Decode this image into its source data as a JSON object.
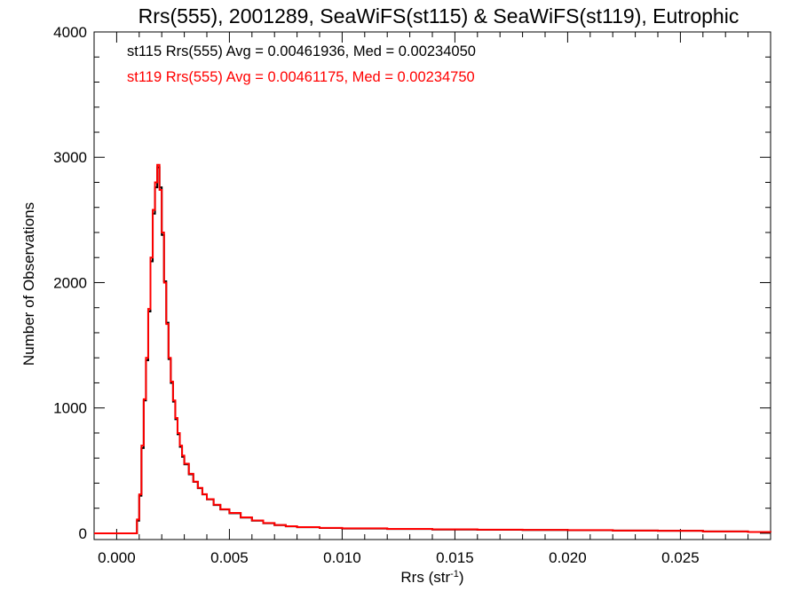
{
  "chart_data": {
    "type": "line",
    "title": "Rrs(555), 2001289, SeaWiFS(st115) & SeaWiFS(st119), Eutrophic",
    "xlabel": "Rrs (str",
    "xlabel_superscript": "-1",
    "xlabel_suffix": ")",
    "ylabel": "Number of Observations",
    "xlim": [
      -0.001,
      0.029
    ],
    "ylim": [
      -50,
      4000
    ],
    "x_ticks": [
      "0.000",
      "0.005",
      "0.010",
      "0.015",
      "0.020",
      "0.025"
    ],
    "y_ticks": [
      "0",
      "1000",
      "2000",
      "3000",
      "4000"
    ],
    "grid": false,
    "annotations": [
      {
        "text": "st115 Rrs(555) Avg = 0.00461936, Med = 0.00234050",
        "color": "#000000"
      },
      {
        "text": "st119 Rrs(555) Avg = 0.00461175, Med = 0.00234750",
        "color": "#ff0000"
      }
    ],
    "series": [
      {
        "name": "st115",
        "color": "#000000",
        "bin_width": 0.0001,
        "x": [
          -0.001,
          0.0008,
          0.0009,
          0.001,
          0.0011,
          0.0012,
          0.0013,
          0.0014,
          0.0015,
          0.0016,
          0.0017,
          0.0018,
          0.0019,
          0.002,
          0.0021,
          0.0022,
          0.0023,
          0.0024,
          0.0025,
          0.0026,
          0.0027,
          0.0028,
          0.0029,
          0.003,
          0.0032,
          0.0034,
          0.0036,
          0.0038,
          0.004,
          0.0043,
          0.0046,
          0.005,
          0.0055,
          0.006,
          0.0065,
          0.007,
          0.0075,
          0.008,
          0.009,
          0.01,
          0.012,
          0.014,
          0.016,
          0.018,
          0.02,
          0.022,
          0.024,
          0.026,
          0.028,
          0.029
        ],
        "values": [
          0,
          0,
          100,
          300,
          680,
          1060,
          1380,
          1770,
          2170,
          2550,
          2760,
          2920,
          2760,
          2380,
          2010,
          1680,
          1390,
          1200,
          1050,
          910,
          790,
          690,
          610,
          550,
          470,
          410,
          360,
          310,
          270,
          225,
          190,
          160,
          125,
          100,
          80,
          65,
          55,
          48,
          42,
          38,
          34,
          30,
          28,
          26,
          24,
          22,
          20,
          15,
          10,
          8
        ]
      },
      {
        "name": "st119",
        "color": "#ff0000",
        "bin_width": 0.0001,
        "x": [
          -0.001,
          0.0008,
          0.0009,
          0.001,
          0.0011,
          0.0012,
          0.0013,
          0.0014,
          0.0015,
          0.0016,
          0.0017,
          0.0018,
          0.0019,
          0.002,
          0.0021,
          0.0022,
          0.0023,
          0.0024,
          0.0025,
          0.0026,
          0.0027,
          0.0028,
          0.0029,
          0.003,
          0.0032,
          0.0034,
          0.0036,
          0.0038,
          0.004,
          0.0043,
          0.0046,
          0.005,
          0.0055,
          0.006,
          0.0065,
          0.007,
          0.0075,
          0.008,
          0.009,
          0.01,
          0.012,
          0.014,
          0.016,
          0.018,
          0.02,
          0.022,
          0.024,
          0.026,
          0.028,
          0.029
        ],
        "values": [
          0,
          0,
          110,
          310,
          700,
          1070,
          1400,
          1790,
          2200,
          2580,
          2800,
          2940,
          2740,
          2400,
          2000,
          1670,
          1400,
          1210,
          1060,
          920,
          800,
          700,
          620,
          555,
          475,
          412,
          362,
          312,
          272,
          228,
          192,
          162,
          127,
          102,
          82,
          66,
          56,
          49,
          43,
          39,
          35,
          31,
          29,
          27,
          25,
          22,
          20,
          15,
          10,
          8
        ]
      }
    ]
  }
}
